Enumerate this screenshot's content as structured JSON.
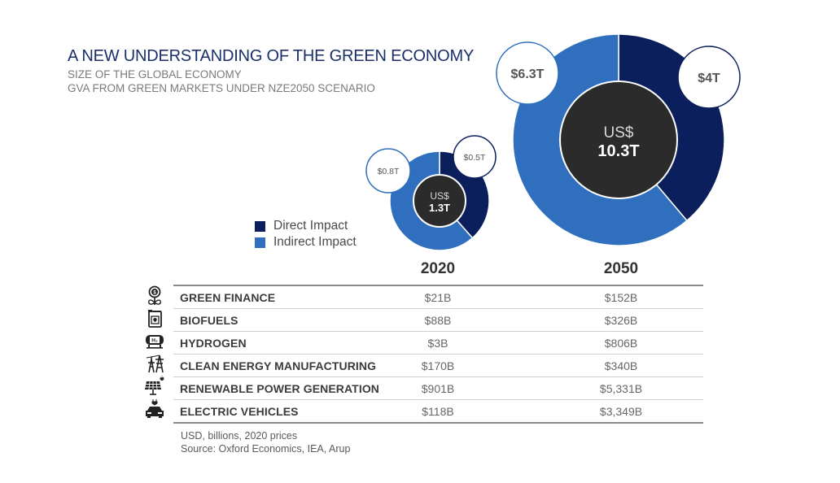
{
  "header": {
    "title": "A NEW UNDERSTANDING OF THE GREEN ECONOMY",
    "subtitle_1": "SIZE OF THE GLOBAL ECONOMY",
    "subtitle_2": "GVA FROM GREEN MARKETS UNDER NZE2050 SCENARIO"
  },
  "colors": {
    "direct": "#0b1f5c",
    "indirect": "#2f6fbd",
    "center": "#2b2b2b",
    "title": "#1b2f6b"
  },
  "legend": [
    {
      "label": "Direct Impact",
      "color": "#0b1f5c"
    },
    {
      "label": "Indirect Impact",
      "color": "#2f6fbd"
    }
  ],
  "chart_data": {
    "type": "pie",
    "title": "Size of the global economy - GVA from green markets under NZE2050 scenario",
    "unit": "USD trillions",
    "donuts": [
      {
        "year": "2020",
        "center_currency": "US$",
        "center_total": "1.3T",
        "total": 1.3,
        "slices": [
          {
            "name": "Direct Impact",
            "value": 0.5,
            "label": "$0.5T"
          },
          {
            "name": "Indirect Impact",
            "value": 0.8,
            "label": "$0.8T"
          }
        ]
      },
      {
        "year": "2050",
        "center_currency": "US$",
        "center_total": "10.3T",
        "total": 10.3,
        "slices": [
          {
            "name": "Direct Impact",
            "value": 4.0,
            "label": "$4T"
          },
          {
            "name": "Indirect Impact",
            "value": 6.3,
            "label": "$6.3T"
          }
        ]
      }
    ],
    "legend": [
      "Direct Impact",
      "Indirect Impact"
    ],
    "legend_position": "left",
    "table": {
      "columns": [
        "",
        "2020",
        "2050"
      ],
      "rows": [
        {
          "icon": "money-plant-icon",
          "sector": "GREEN FINANCE",
          "v2020": "$21B",
          "v2050": "$152B"
        },
        {
          "icon": "fuel-can-icon",
          "sector": "BIOFUELS",
          "v2020": "$88B",
          "v2050": "$326B"
        },
        {
          "icon": "hydrogen-tank-icon",
          "sector": "HYDROGEN",
          "v2020": "$3B",
          "v2050": "$806B"
        },
        {
          "icon": "power-pylon-icon",
          "sector": "CLEAN ENERGY MANUFACTURING",
          "v2020": "$170B",
          "v2050": "$340B"
        },
        {
          "icon": "solar-panel-icon",
          "sector": "RENEWABLE POWER GENERATION",
          "v2020": "$901B",
          "v2050": "$5,331B"
        },
        {
          "icon": "electric-car-icon",
          "sector": "ELECTRIC VEHICLES",
          "v2020": "$118B",
          "v2050": "$3,349B"
        }
      ]
    }
  },
  "footer": {
    "note": "USD, billions, 2020 prices",
    "source": "Source: Oxford Economics, IEA, Arup"
  }
}
